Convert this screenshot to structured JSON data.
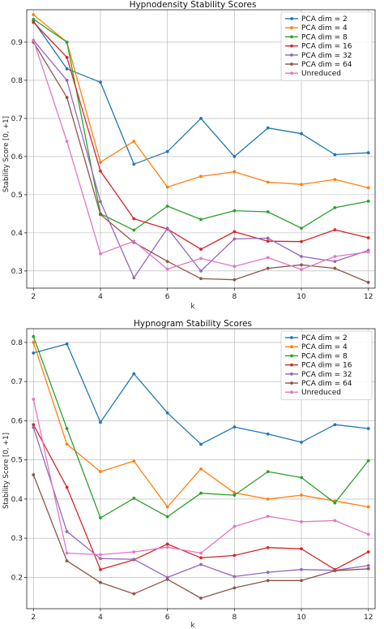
{
  "chart_data": [
    {
      "type": "line",
      "title": "Hypnodensity Stability Scores",
      "xlabel": "k",
      "ylabel": "Stability Score [0, +1]",
      "x": [
        2,
        3,
        4,
        5,
        6,
        7,
        8,
        9,
        10,
        11,
        12
      ],
      "xticks": [
        2,
        4,
        6,
        8,
        10,
        12
      ],
      "yticks": [
        0.3,
        0.4,
        0.5,
        0.6,
        0.7,
        0.8,
        0.9
      ],
      "xlim": [
        1.8,
        12.2
      ],
      "ylim": [
        0.255,
        0.985
      ],
      "grid": true,
      "legend_position": "top-right",
      "series": [
        {
          "name": "PCA dim = 2",
          "color": "#1f77b4",
          "values": [
            0.955,
            0.83,
            0.795,
            0.58,
            0.613,
            0.7,
            0.6,
            0.675,
            0.66,
            0.605,
            0.61
          ]
        },
        {
          "name": "PCA dim = 4",
          "color": "#ff7f0e",
          "values": [
            0.972,
            0.9,
            0.585,
            0.64,
            0.52,
            0.548,
            0.56,
            0.533,
            0.527,
            0.54,
            0.518
          ]
        },
        {
          "name": "PCA dim = 8",
          "color": "#2ca02c",
          "values": [
            0.96,
            0.9,
            0.45,
            0.407,
            0.47,
            0.435,
            0.458,
            0.455,
            0.412,
            0.466,
            0.483
          ]
        },
        {
          "name": "PCA dim = 16",
          "color": "#d62728",
          "values": [
            0.952,
            0.86,
            0.562,
            0.437,
            0.41,
            0.357,
            0.403,
            0.378,
            0.377,
            0.408,
            0.387
          ]
        },
        {
          "name": "PCA dim = 32",
          "color": "#9467bd",
          "values": [
            0.905,
            0.8,
            0.482,
            0.282,
            0.412,
            0.3,
            0.384,
            0.386,
            0.338,
            0.325,
            0.354
          ]
        },
        {
          "name": "PCA dim = 64",
          "color": "#8c564b",
          "values": [
            0.9,
            0.755,
            0.448,
            0.375,
            0.325,
            0.28,
            0.277,
            0.307,
            0.316,
            0.307,
            0.27
          ]
        },
        {
          "name": "Unreduced",
          "color": "#e377c2",
          "values": [
            0.905,
            0.64,
            0.345,
            0.378,
            0.305,
            0.333,
            0.312,
            0.335,
            0.304,
            0.338,
            0.35
          ]
        }
      ]
    },
    {
      "type": "line",
      "title": "Hypnogram Stability Scores",
      "xlabel": "k",
      "ylabel": "Stability Score [0, +1]",
      "x": [
        2,
        3,
        4,
        5,
        6,
        7,
        8,
        9,
        10,
        11,
        12
      ],
      "xticks": [
        2,
        4,
        6,
        8,
        10,
        12
      ],
      "yticks": [
        0.2,
        0.3,
        0.4,
        0.5,
        0.6,
        0.7,
        0.8
      ],
      "xlim": [
        1.8,
        12.2
      ],
      "ylim": [
        0.12,
        0.835
      ],
      "grid": true,
      "legend_position": "top-right",
      "series": [
        {
          "name": "PCA dim = 2",
          "color": "#1f77b4",
          "values": [
            0.773,
            0.796,
            0.596,
            0.72,
            0.62,
            0.54,
            0.584,
            0.566,
            0.545,
            0.59,
            0.58
          ]
        },
        {
          "name": "PCA dim = 4",
          "color": "#ff7f0e",
          "values": [
            0.8,
            0.54,
            0.47,
            0.497,
            0.38,
            0.477,
            0.416,
            0.4,
            0.41,
            0.395,
            0.38
          ]
        },
        {
          "name": "PCA dim = 8",
          "color": "#2ca02c",
          "values": [
            0.815,
            0.58,
            0.352,
            0.402,
            0.355,
            0.415,
            0.41,
            0.47,
            0.455,
            0.39,
            0.498
          ]
        },
        {
          "name": "PCA dim = 16",
          "color": "#d62728",
          "values": [
            0.59,
            0.43,
            0.22,
            0.245,
            0.285,
            0.25,
            0.256,
            0.276,
            0.273,
            0.22,
            0.265
          ]
        },
        {
          "name": "PCA dim = 32",
          "color": "#9467bd",
          "values": [
            0.583,
            0.317,
            0.248,
            0.246,
            0.2,
            0.233,
            0.202,
            0.213,
            0.22,
            0.218,
            0.23
          ]
        },
        {
          "name": "PCA dim = 64",
          "color": "#8c564b",
          "values": [
            0.462,
            0.242,
            0.187,
            0.158,
            0.195,
            0.147,
            0.173,
            0.192,
            0.192,
            0.217,
            0.222
          ]
        },
        {
          "name": "Unreduced",
          "color": "#e377c2",
          "values": [
            0.655,
            0.262,
            0.258,
            0.265,
            0.277,
            0.262,
            0.33,
            0.356,
            0.342,
            0.345,
            0.31
          ]
        }
      ]
    }
  ]
}
